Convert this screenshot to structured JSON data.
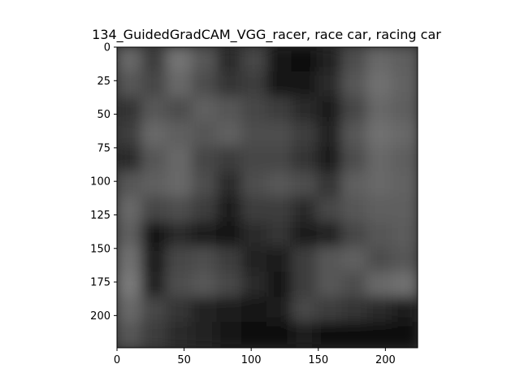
{
  "figure": {
    "title": "134_GuidedGradCAM_VGG_racer, race car, racing car",
    "image_name": "guided-gradcam-grayscale-heatmap",
    "colors": {
      "background": "#ffffff",
      "axes": "#000000"
    }
  },
  "chart_data": {
    "type": "heatmap",
    "title": "134_GuidedGradCAM_VGG_racer, race car, racing car",
    "xlabel": "",
    "ylabel": "",
    "xlim": [
      0,
      224
    ],
    "ylim": [
      224,
      0
    ],
    "x_ticks": [
      0,
      50,
      100,
      150,
      200
    ],
    "y_ticks": [
      0,
      25,
      50,
      75,
      100,
      125,
      150,
      175,
      200
    ],
    "grid": false,
    "grid_shape": [
      12,
      12
    ],
    "intensity": [
      [
        0.55,
        0.3,
        0.62,
        0.45,
        0.2,
        0.35,
        0.05,
        0.02,
        0.15,
        0.4,
        0.55,
        0.5
      ],
      [
        0.45,
        0.35,
        0.55,
        0.4,
        0.25,
        0.3,
        0.05,
        0.05,
        0.2,
        0.45,
        0.6,
        0.52
      ],
      [
        0.25,
        0.45,
        0.4,
        0.5,
        0.45,
        0.35,
        0.3,
        0.2,
        0.1,
        0.35,
        0.55,
        0.5
      ],
      [
        0.3,
        0.55,
        0.5,
        0.45,
        0.5,
        0.4,
        0.4,
        0.3,
        0.15,
        0.45,
        0.6,
        0.55
      ],
      [
        0.2,
        0.45,
        0.55,
        0.35,
        0.3,
        0.35,
        0.35,
        0.25,
        0.1,
        0.4,
        0.55,
        0.5
      ],
      [
        0.45,
        0.5,
        0.55,
        0.4,
        0.2,
        0.4,
        0.45,
        0.4,
        0.25,
        0.5,
        0.55,
        0.52
      ],
      [
        0.55,
        0.35,
        0.4,
        0.3,
        0.1,
        0.3,
        0.3,
        0.2,
        0.35,
        0.45,
        0.5,
        0.5
      ],
      [
        0.5,
        0.05,
        0.2,
        0.1,
        0.05,
        0.2,
        0.25,
        0.1,
        0.15,
        0.35,
        0.45,
        0.48
      ],
      [
        0.6,
        0.1,
        0.35,
        0.4,
        0.3,
        0.15,
        0.1,
        0.3,
        0.45,
        0.5,
        0.4,
        0.45
      ],
      [
        0.65,
        0.15,
        0.4,
        0.45,
        0.35,
        0.2,
        0.05,
        0.3,
        0.45,
        0.4,
        0.55,
        0.6
      ],
      [
        0.55,
        0.35,
        0.25,
        0.15,
        0.1,
        0.05,
        0.1,
        0.35,
        0.3,
        0.25,
        0.2,
        0.1
      ],
      [
        0.45,
        0.3,
        0.2,
        0.15,
        0.05,
        0.0,
        0.02,
        0.1,
        0.02,
        0.0,
        0.0,
        0.0
      ]
    ]
  }
}
